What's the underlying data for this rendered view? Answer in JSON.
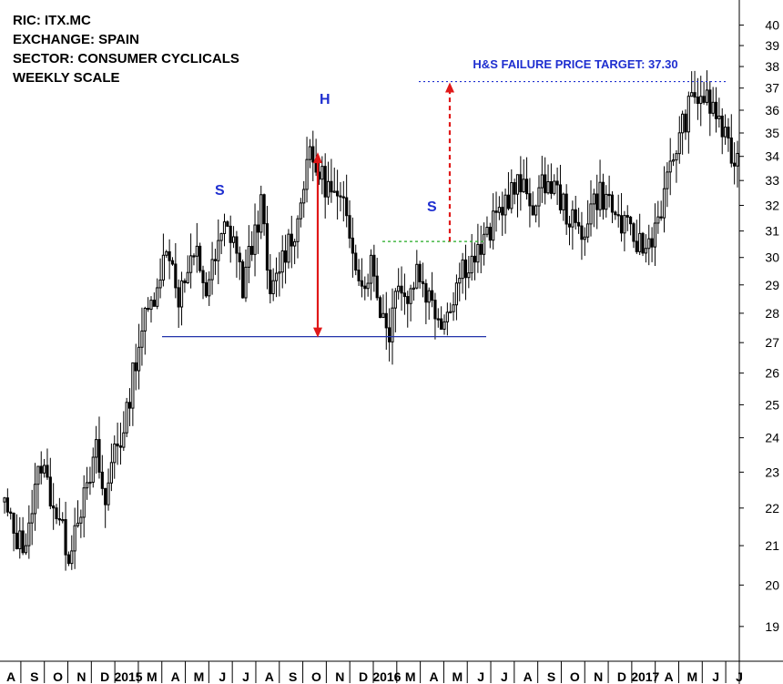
{
  "info": {
    "ric": "RIC: ITX.MC",
    "exchange": "EXCHANGE: SPAIN",
    "sector": "SECTOR: CONSUMER CYCLICALS",
    "scale": "WEEKLY SCALE"
  },
  "colors": {
    "neckline": "#2233aa",
    "arrow": "#e01818",
    "resistance": "#22aa22",
    "target_line": "#1f2fd0",
    "annotation_text": "#1f2fd0",
    "candle": "#000000"
  },
  "chart_data": {
    "type": "candlestick",
    "scale": "log",
    "ylim": [
      18.2,
      40.8
    ],
    "y_ticks": [
      19,
      20,
      21,
      22,
      23,
      24,
      25,
      26,
      27,
      28,
      29,
      30,
      31,
      32,
      33,
      34,
      35,
      36,
      37,
      38,
      39,
      40
    ],
    "x_ticks": [
      "A",
      "S",
      "O",
      "N",
      "D",
      "2015",
      "M",
      "A",
      "M",
      "J",
      "J",
      "A",
      "S",
      "O",
      "N",
      "D",
      "2016",
      "M",
      "A",
      "M",
      "J",
      "J",
      "A",
      "S",
      "O",
      "N",
      "D",
      "2017",
      "A",
      "M",
      "J",
      "J"
    ],
    "grid": false,
    "annotations": {
      "left_shoulder": "S",
      "head": "H",
      "right_shoulder": "S",
      "target_label": "H&S FAILURE PRICE TARGET: 37.30"
    },
    "levels": {
      "neckline": 27.2,
      "resistance": 30.6,
      "head_high": 34.1,
      "target": 37.3
    },
    "close_path": [
      22.1,
      21.3,
      21.0,
      22.0,
      23.3,
      22.4,
      21.6,
      20.8,
      21.9,
      22.4,
      23.6,
      22.0,
      23.9,
      24.0,
      26.0,
      27.5,
      28.3,
      29.6,
      30.3,
      28.6,
      29.4,
      30.1,
      28.8,
      29.9,
      31.1,
      30.8,
      28.9,
      30.5,
      32.0,
      28.4,
      29.7,
      30.6,
      31.3,
      34.0,
      33.5,
      32.9,
      32.3,
      31.8,
      30.6,
      28.9,
      29.8,
      28.2,
      27.4,
      29.4,
      28.4,
      29.6,
      28.8,
      28.1,
      27.8,
      28.7,
      29.7,
      29.9,
      30.3,
      31.0,
      31.8,
      32.4,
      32.8,
      32.4,
      32.0,
      33.0,
      32.7,
      32.0,
      31.3,
      30.8,
      32.0,
      32.5,
      32.1,
      31.4,
      31.0,
      30.6,
      30.3,
      31.2,
      32.4,
      34.0,
      35.3,
      36.4,
      36.7,
      36.2,
      35.6,
      34.2,
      33.8
    ],
    "step_weeks": 1
  }
}
